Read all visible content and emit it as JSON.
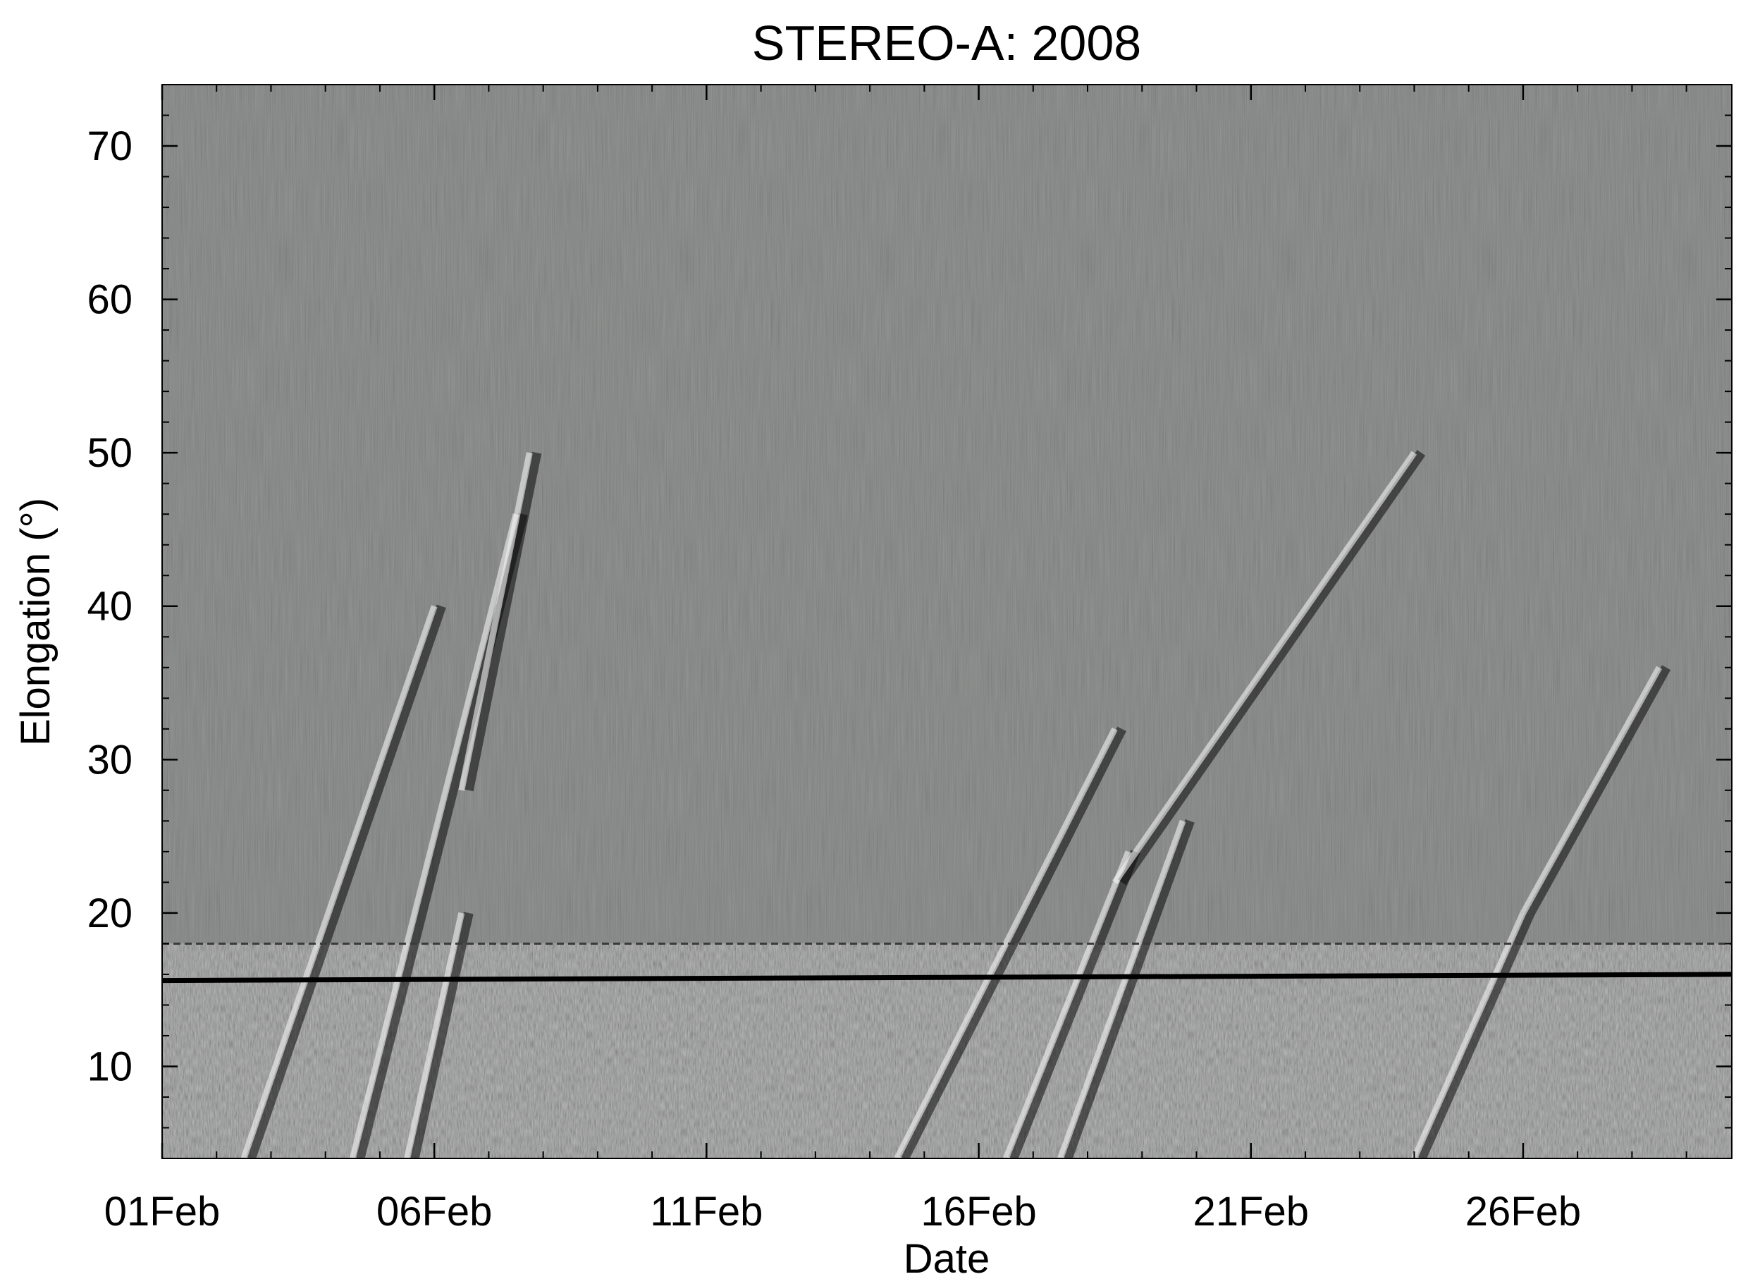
{
  "chart_data": {
    "type": "heatmap",
    "title": "STEREO-A: 2008",
    "xlabel": "Date",
    "ylabel": "Elongation (°)",
    "x_type": "date",
    "xlim": [
      "2008-02-01",
      "2008-02-29T20:00"
    ],
    "ylim": [
      4,
      74
    ],
    "x_ticks": [
      {
        "date": "2008-02-01",
        "label": "01Feb"
      },
      {
        "date": "2008-02-06",
        "label": "06Feb"
      },
      {
        "date": "2008-02-11",
        "label": "11Feb"
      },
      {
        "date": "2008-02-16",
        "label": "16Feb"
      },
      {
        "date": "2008-02-21",
        "label": "21Feb"
      },
      {
        "date": "2008-02-26",
        "label": "26Feb"
      }
    ],
    "y_ticks": [
      10,
      20,
      30,
      40,
      50,
      60,
      70
    ],
    "colormap": "grayscale difference image",
    "background_color": "#7a7c7b",
    "instrument_boundary_elongation": 18,
    "reference_line": {
      "color": "#000000",
      "start": {
        "date": "2008-02-01",
        "elongation": 15.6
      },
      "end": {
        "date": "2008-02-29T20:00",
        "elongation": 16.0
      }
    },
    "tracks": [
      {
        "start": {
          "date": "2008-02-02T12:00",
          "elongation": 4
        },
        "end": {
          "date": "2008-02-06T00:00",
          "elongation": 40
        }
      },
      {
        "start": {
          "date": "2008-02-04T12:00",
          "elongation": 4
        },
        "end": {
          "date": "2008-02-07T12:00",
          "elongation": 46
        }
      },
      {
        "start": {
          "date": "2008-02-05T12:00",
          "elongation": 4
        },
        "end": {
          "date": "2008-02-06T12:00",
          "elongation": 20
        }
      },
      {
        "start": {
          "date": "2008-02-06T12:00",
          "elongation": 28
        },
        "end": {
          "date": "2008-02-07T18:00",
          "elongation": 50
        }
      },
      {
        "start": {
          "date": "2008-02-14T12:00",
          "elongation": 4
        },
        "end": {
          "date": "2008-02-18T12:00",
          "elongation": 32
        }
      },
      {
        "start": {
          "date": "2008-02-16T12:00",
          "elongation": 4
        },
        "end": {
          "date": "2008-02-18T18:00",
          "elongation": 24
        }
      },
      {
        "start": {
          "date": "2008-02-17T12:00",
          "elongation": 4
        },
        "end": {
          "date": "2008-02-19T18:00",
          "elongation": 26
        }
      },
      {
        "start": {
          "date": "2008-02-18T12:00",
          "elongation": 22
        },
        "end": {
          "date": "2008-02-24T00:00",
          "elongation": 50
        }
      },
      {
        "start": {
          "date": "2008-02-24T00:00",
          "elongation": 4
        },
        "end": {
          "date": "2008-02-26T00:00",
          "elongation": 20
        }
      },
      {
        "start": {
          "date": "2008-02-26T00:00",
          "elongation": 20
        },
        "end": {
          "date": "2008-02-28T12:00",
          "elongation": 36
        }
      }
    ]
  }
}
